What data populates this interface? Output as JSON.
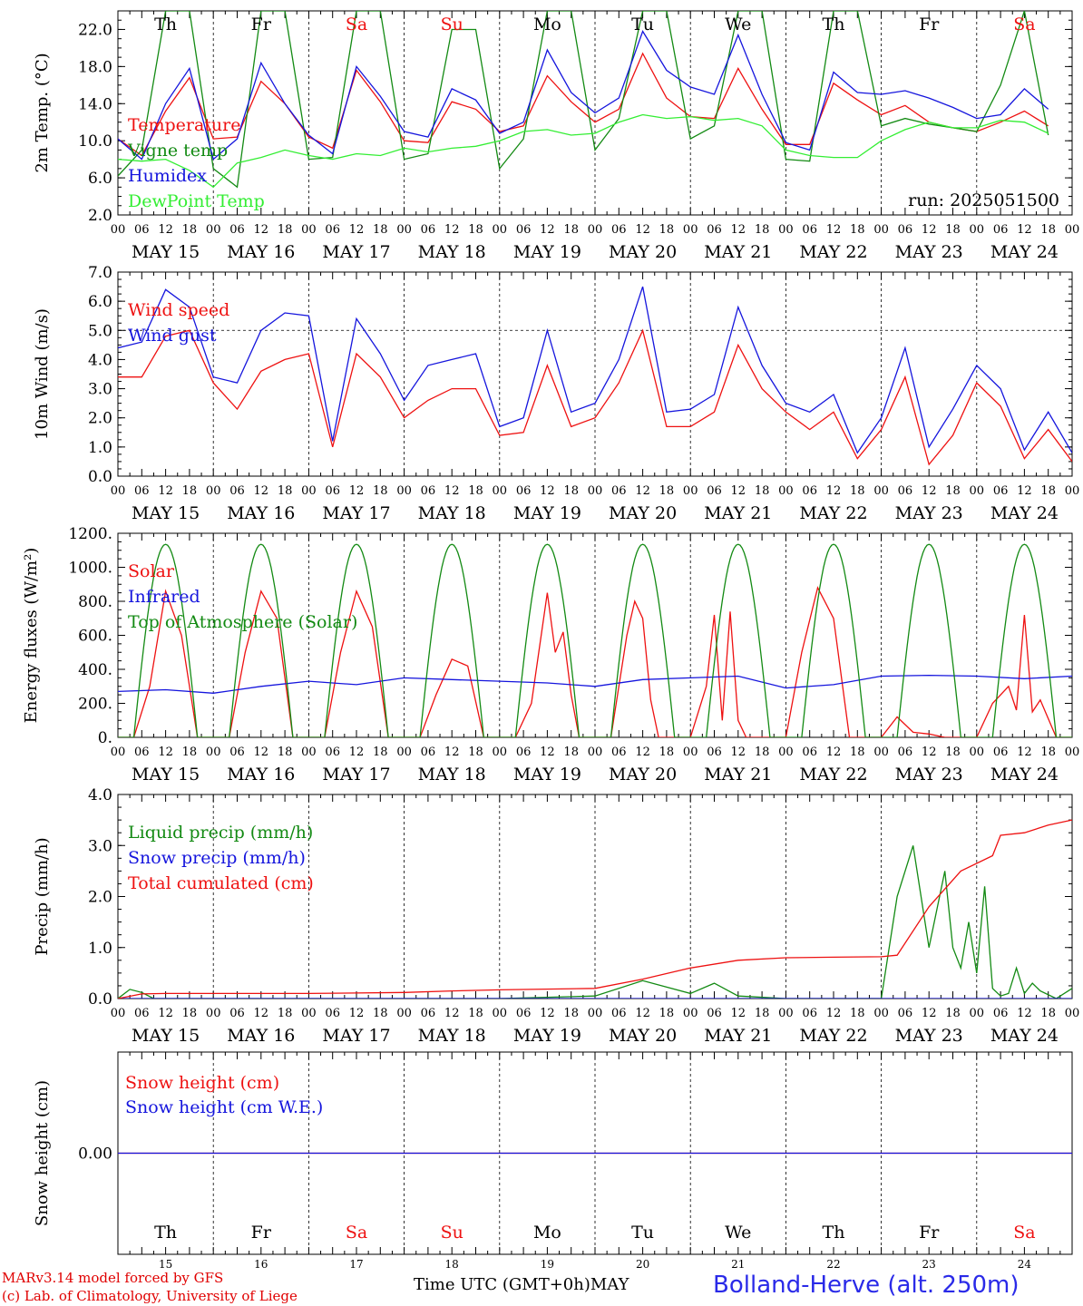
{
  "title": "Bolland-Herve (alt. 250m)",
  "credits": [
    "MARv3.14 model forced by GFS",
    "(c) Lab. of Climatology, University of Liege"
  ],
  "run_label": "run: 2025051500",
  "x_axis_title": "Time UTC (GMT+0h)",
  "month_label": "MAY",
  "hour_ticks": [
    "00",
    "06",
    "12",
    "18"
  ],
  "days": [
    {
      "date": "MAY 15",
      "dow": "Th",
      "num": "15",
      "weekend": false
    },
    {
      "date": "MAY 16",
      "dow": "Fr",
      "num": "16",
      "weekend": false
    },
    {
      "date": "MAY 17",
      "dow": "Sa",
      "num": "17",
      "weekend": true
    },
    {
      "date": "MAY 18",
      "dow": "Su",
      "num": "18",
      "weekend": true
    },
    {
      "date": "MAY 19",
      "dow": "Mo",
      "num": "19",
      "weekend": false
    },
    {
      "date": "MAY 20",
      "dow": "Tu",
      "num": "20",
      "weekend": false
    },
    {
      "date": "MAY 21",
      "dow": "We",
      "num": "21",
      "weekend": false
    },
    {
      "date": "MAY 22",
      "dow": "Th",
      "num": "22",
      "weekend": false
    },
    {
      "date": "MAY 23",
      "dow": "Fr",
      "num": "23",
      "weekend": false
    },
    {
      "date": "MAY 24",
      "dow": "Sa",
      "num": "24",
      "weekend": true
    }
  ],
  "colors": {
    "red": "#ee1111",
    "green": "#138a13",
    "blue": "#1515dd",
    "lightgreen": "#33ee33",
    "weekend": "#ee1111"
  },
  "chart_data": [
    {
      "type": "line",
      "ylabel": "2m Temp. (°C)",
      "ylim": [
        2,
        24
      ],
      "yticks": [
        "2.0",
        "6.0",
        "10.0",
        "14.0",
        "18.0",
        "22.0"
      ],
      "ytick_values": [
        2,
        6,
        10,
        14,
        18,
        22
      ],
      "x_unit": "hours since May 15 00 UTC",
      "series": [
        {
          "name": "Temperature",
          "color": "red",
          "x": [
            0,
            6,
            12,
            18,
            24,
            30,
            36,
            42,
            48,
            54,
            60,
            66,
            72,
            78,
            84,
            90,
            96,
            102,
            108,
            114,
            120,
            126,
            132,
            138,
            144,
            150,
            156,
            162,
            168,
            174,
            180,
            186,
            192,
            198,
            204,
            210,
            216,
            222,
            228,
            234
          ],
          "y": [
            10.2,
            8.4,
            13.2,
            16.8,
            10.2,
            10.4,
            16.4,
            14.0,
            10.4,
            9.2,
            17.6,
            14.2,
            10.0,
            9.8,
            14.2,
            13.4,
            11.0,
            11.6,
            17.0,
            14.2,
            12.0,
            13.4,
            19.4,
            14.6,
            12.6,
            12.4,
            17.8,
            13.4,
            9.6,
            9.6,
            16.2,
            14.4,
            12.8,
            13.8,
            12.0,
            11.4,
            11.0,
            12.0,
            13.2,
            11.6
          ]
        },
        {
          "name": "Vigne temp",
          "color": "green",
          "x": [
            0,
            6,
            12,
            18,
            24,
            30,
            36,
            42,
            48,
            54,
            60,
            66,
            72,
            78,
            84,
            90,
            96,
            102,
            108,
            114,
            120,
            126,
            132,
            138,
            144,
            150,
            156,
            162,
            168,
            174,
            180,
            186,
            192,
            198,
            204,
            210,
            216,
            222,
            228,
            234
          ],
          "y": [
            6.2,
            9.0,
            24,
            24,
            7.0,
            5.0,
            24,
            24,
            8.0,
            8.2,
            24,
            24,
            8.0,
            8.6,
            22.0,
            22,
            7.0,
            10.2,
            24,
            24,
            9.0,
            12.4,
            24,
            24,
            10.2,
            11.6,
            24,
            24,
            8.0,
            7.8,
            24,
            24,
            11.6,
            12.4,
            11.8,
            11.4,
            11.0,
            16.0,
            24,
            10.6
          ]
        },
        {
          "name": "Humidex",
          "color": "blue",
          "x": [
            0,
            6,
            12,
            18,
            24,
            30,
            36,
            42,
            48,
            54,
            60,
            66,
            72,
            78,
            84,
            90,
            96,
            102,
            108,
            114,
            120,
            126,
            132,
            138,
            144,
            150,
            156,
            162,
            168,
            174,
            180,
            186,
            192,
            198,
            204,
            210,
            216,
            222,
            228,
            234
          ],
          "y": [
            10.2,
            8.0,
            14.0,
            17.8,
            8.0,
            10.2,
            18.4,
            14.0,
            10.6,
            8.6,
            18.0,
            14.8,
            11.0,
            10.4,
            15.6,
            14.4,
            10.8,
            12.0,
            19.8,
            15.2,
            13.0,
            14.6,
            21.8,
            17.6,
            15.8,
            15.0,
            21.4,
            15.0,
            9.8,
            9.0,
            17.4,
            15.2,
            15.0,
            15.4,
            14.6,
            13.6,
            12.4,
            12.8,
            15.6,
            13.4
          ]
        },
        {
          "name": "DewPoint Temp",
          "color": "lightgreen",
          "x": [
            0,
            6,
            12,
            18,
            24,
            30,
            36,
            42,
            48,
            54,
            60,
            66,
            72,
            78,
            84,
            90,
            96,
            102,
            108,
            114,
            120,
            126,
            132,
            138,
            144,
            150,
            156,
            162,
            168,
            174,
            180,
            186,
            192,
            198,
            204,
            210,
            216,
            222,
            228,
            234
          ],
          "y": [
            8.0,
            7.8,
            8.0,
            6.8,
            5.0,
            7.6,
            8.2,
            9.0,
            8.4,
            8.0,
            8.6,
            8.4,
            9.2,
            8.8,
            9.2,
            9.4,
            10.0,
            11.0,
            11.2,
            10.6,
            10.8,
            12.0,
            12.8,
            12.4,
            12.6,
            12.2,
            12.4,
            11.6,
            9.0,
            8.4,
            8.2,
            8.2,
            10.0,
            11.2,
            12.0,
            11.4,
            11.4,
            12.2,
            12.0,
            10.8
          ]
        }
      ]
    },
    {
      "type": "line",
      "ylabel": "10m Wind (m/s)",
      "ylim": [
        0,
        7
      ],
      "yticks": [
        "0.0",
        "1.0",
        "2.0",
        "3.0",
        "4.0",
        "5.0",
        "6.0",
        "7.0"
      ],
      "ytick_values": [
        0,
        1,
        2,
        3,
        4,
        5,
        6,
        7
      ],
      "reference_line": 5,
      "x_unit": "hours since May 15 00 UTC",
      "series": [
        {
          "name": "Wind speed",
          "color": "red",
          "x": [
            0,
            6,
            12,
            18,
            24,
            30,
            36,
            42,
            48,
            54,
            60,
            66,
            72,
            78,
            84,
            90,
            96,
            102,
            108,
            114,
            120,
            126,
            132,
            138,
            144,
            150,
            156,
            162,
            168,
            174,
            180,
            186,
            192,
            198,
            204,
            210,
            216,
            222,
            228,
            234,
            240
          ],
          "y": [
            3.4,
            3.4,
            4.8,
            5.0,
            3.2,
            2.3,
            3.6,
            4.0,
            4.2,
            1.0,
            4.2,
            3.4,
            2.0,
            2.6,
            3.0,
            3.0,
            1.4,
            1.5,
            3.8,
            1.7,
            2.0,
            3.2,
            5.0,
            1.7,
            1.7,
            2.2,
            4.5,
            3.0,
            2.2,
            1.6,
            2.2,
            0.6,
            1.6,
            3.4,
            0.4,
            1.4,
            3.2,
            2.4,
            0.6,
            1.6,
            0.5
          ]
        },
        {
          "name": "Wind gust",
          "color": "blue",
          "x": [
            0,
            6,
            12,
            18,
            24,
            30,
            36,
            42,
            48,
            54,
            60,
            66,
            72,
            78,
            84,
            90,
            96,
            102,
            108,
            114,
            120,
            126,
            132,
            138,
            144,
            150,
            156,
            162,
            168,
            174,
            180,
            186,
            192,
            198,
            204,
            210,
            216,
            222,
            228,
            234,
            240
          ],
          "y": [
            4.4,
            4.6,
            6.4,
            5.8,
            3.4,
            3.2,
            5.0,
            5.6,
            5.5,
            1.2,
            5.4,
            4.2,
            2.6,
            3.8,
            4.0,
            4.2,
            1.7,
            2.0,
            5.0,
            2.2,
            2.5,
            4.0,
            6.5,
            2.2,
            2.3,
            2.8,
            5.8,
            3.8,
            2.5,
            2.2,
            2.8,
            0.8,
            2.0,
            4.4,
            1.0,
            2.3,
            3.8,
            3.0,
            0.9,
            2.2,
            0.8
          ]
        }
      ]
    },
    {
      "type": "line",
      "ylabel": "Energy fluxes (W/m²)",
      "ylim": [
        0,
        1200
      ],
      "yticks": [
        "0.",
        "200.",
        "400.",
        "600.",
        "800.",
        "1000.",
        "1200."
      ],
      "ytick_values": [
        0,
        200,
        400,
        600,
        800,
        1000,
        1200
      ],
      "x_unit": "hours since May 15 00 UTC",
      "series": [
        {
          "name": "Solar",
          "color": "red",
          "x": [
            0,
            4,
            8,
            12,
            16,
            20,
            24,
            28,
            32,
            36,
            40,
            44,
            48,
            52,
            56,
            60,
            64,
            68,
            72,
            76,
            80,
            84,
            88,
            92,
            96,
            100,
            104,
            108,
            110,
            112,
            114,
            116,
            120,
            124,
            128,
            130,
            132,
            134,
            136,
            140,
            144,
            148,
            150,
            152,
            154,
            156,
            158,
            160,
            164,
            168,
            172,
            176,
            180,
            184,
            188,
            192,
            196,
            200,
            204,
            208,
            212,
            216,
            220,
            224,
            226,
            228,
            230,
            232,
            236,
            240
          ],
          "y": [
            0,
            0,
            300,
            860,
            600,
            0,
            0,
            0,
            500,
            860,
            700,
            0,
            0,
            0,
            500,
            860,
            650,
            0,
            0,
            0,
            250,
            460,
            420,
            0,
            0,
            0,
            200,
            850,
            500,
            620,
            250,
            0,
            0,
            0,
            600,
            800,
            700,
            220,
            0,
            0,
            0,
            300,
            720,
            100,
            740,
            100,
            0,
            0,
            0,
            0,
            500,
            880,
            700,
            0,
            0,
            0,
            120,
            30,
            20,
            0,
            0,
            0,
            200,
            300,
            160,
            720,
            150,
            220,
            0,
            0
          ]
        },
        {
          "name": "Infrared",
          "color": "blue",
          "x": [
            0,
            12,
            24,
            36,
            48,
            60,
            72,
            84,
            96,
            108,
            120,
            132,
            144,
            156,
            168,
            180,
            192,
            204,
            216,
            228,
            240
          ],
          "y": [
            270,
            280,
            260,
            300,
            330,
            310,
            350,
            340,
            330,
            320,
            300,
            340,
            350,
            360,
            290,
            310,
            360,
            365,
            360,
            345,
            360
          ]
        },
        {
          "name": "Top of Atmosphere (Solar)",
          "color": "green",
          "type": "daily_curve",
          "peak": 1135,
          "sunrise_h": 4,
          "sunset_h": 20
        }
      ]
    },
    {
      "type": "line",
      "ylabel": "Precip (mm/h)",
      "ylim": [
        0,
        4
      ],
      "yticks": [
        "0.0",
        "1.0",
        "2.0",
        "3.0",
        "4.0"
      ],
      "ytick_values": [
        0,
        1,
        2,
        3,
        4
      ],
      "x_unit": "hours since May 15 00 UTC",
      "series": [
        {
          "name": "Liquid precip (mm/h)",
          "color": "green",
          "x": [
            0,
            3,
            6,
            9,
            12,
            24,
            72,
            96,
            120,
            132,
            144,
            150,
            156,
            168,
            192,
            196,
            200,
            204,
            208,
            210,
            212,
            214,
            216,
            218,
            220,
            222,
            224,
            226,
            228,
            230,
            232,
            236,
            240
          ],
          "y": [
            0,
            0.18,
            0.12,
            0,
            0,
            0,
            0,
            0,
            0.05,
            0.35,
            0.1,
            0.3,
            0.05,
            0,
            0,
            2.0,
            3.0,
            1.0,
            2.5,
            1.0,
            0.6,
            1.5,
            0.5,
            2.2,
            0.2,
            0.05,
            0.1,
            0.6,
            0.1,
            0.3,
            0.15,
            0,
            0.2
          ]
        },
        {
          "name": "Snow precip (mm/h)",
          "color": "blue",
          "x": [
            0,
            240
          ],
          "y": [
            0,
            0
          ]
        },
        {
          "name": "Total cumulated (cm)",
          "color": "red",
          "x": [
            0,
            6,
            12,
            24,
            48,
            72,
            84,
            96,
            120,
            132,
            144,
            156,
            168,
            180,
            192,
            196,
            204,
            212,
            220,
            222,
            228,
            234,
            240
          ],
          "y": [
            0,
            0.09,
            0.1,
            0.1,
            0.1,
            0.12,
            0.15,
            0.17,
            0.2,
            0.38,
            0.6,
            0.75,
            0.8,
            0.81,
            0.82,
            0.85,
            1.8,
            2.5,
            2.8,
            3.2,
            3.25,
            3.4,
            3.5
          ]
        }
      ]
    },
    {
      "type": "line",
      "ylabel": "Snow height (cm)",
      "yticks": [
        "0.00"
      ],
      "x_unit": "hours since May 15 00 UTC",
      "series": [
        {
          "name": "Snow height (cm)",
          "color": "red",
          "x": [
            0,
            240
          ],
          "y": [
            0,
            0
          ]
        },
        {
          "name": "Snow height (cm W.E.)",
          "color": "blue",
          "x": [
            0,
            240
          ],
          "y": [
            0,
            0
          ]
        }
      ]
    }
  ]
}
